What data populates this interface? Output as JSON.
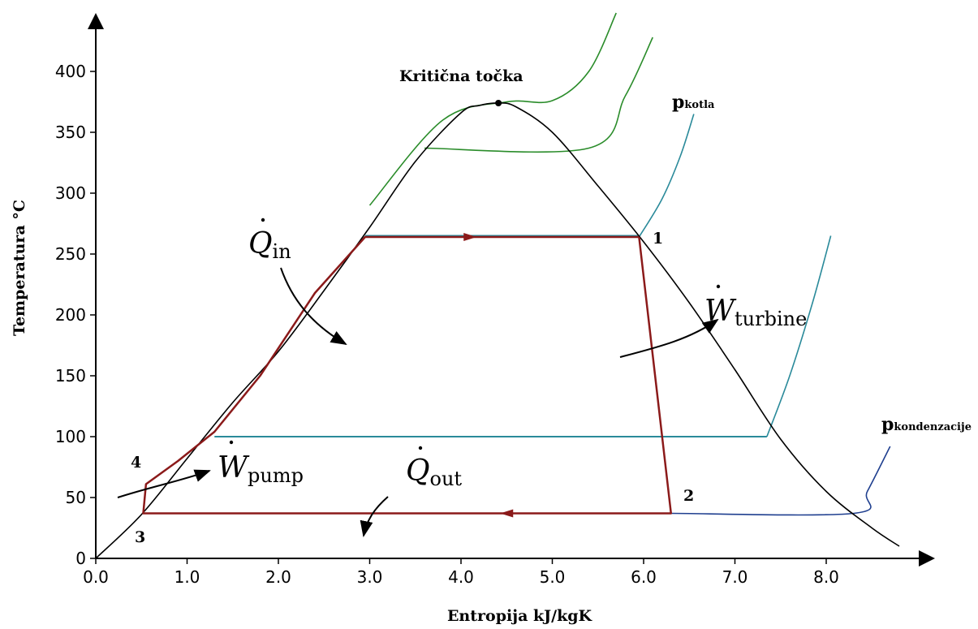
{
  "chart_data": {
    "type": "line",
    "title": "",
    "xlabel": "Entropija kJ/kgK",
    "ylabel": "Temperatura °C",
    "xlim": [
      0.0,
      8.9
    ],
    "ylim": [
      0,
      450
    ],
    "x_ticks": [
      "0.0",
      "1.0",
      "2.0",
      "3.0",
      "4.0",
      "5.0",
      "6.0",
      "7.0",
      "8.0"
    ],
    "y_ticks": [
      "0",
      "50",
      "100",
      "150",
      "200",
      "250",
      "300",
      "350",
      "400"
    ],
    "grid": false,
    "colors": {
      "saturation_dome": "#000000",
      "cycle": "#8b1a1a",
      "boiler_isobar": "#2a8a9a",
      "high_isobars": "#2a8c2a",
      "condenser_isobar": "#1f3f8f",
      "critical_point": "#000000"
    },
    "saturation_dome": {
      "x": [
        0.0,
        0.5,
        1.0,
        1.5,
        2.0,
        2.5,
        3.0,
        3.5,
        4.0,
        4.2,
        4.41,
        4.6,
        5.0,
        5.5,
        6.0,
        6.5,
        7.0,
        7.5,
        8.0,
        8.5,
        8.8
      ],
      "y": [
        0,
        36,
        82,
        128,
        170,
        220,
        272,
        326,
        366,
        372,
        374,
        371,
        350,
        306,
        260,
        210,
        155,
        98,
        55,
        25,
        10
      ]
    },
    "critical_point": {
      "label": "Kritična točka",
      "x": 4.41,
      "y": 374
    },
    "cycle": {
      "points": [
        {
          "label": "1",
          "x": 5.95,
          "y": 264
        },
        {
          "label": "2",
          "x": 6.3,
          "y": 37
        },
        {
          "label": "3",
          "x": 0.52,
          "y": 37
        },
        {
          "label": "4",
          "x": 0.55,
          "y": 61
        }
      ],
      "path_x": [
        5.95,
        6.3,
        0.52,
        0.55,
        0.9,
        1.3,
        1.8,
        2.4,
        2.95,
        5.95
      ],
      "path_y": [
        264,
        37,
        37,
        61,
        80,
        104,
        150,
        218,
        264,
        264
      ]
    },
    "isobars": [
      {
        "name": "pkotla",
        "x": [
          5.95,
          6.2,
          6.4,
          6.55
        ],
        "y": [
          264,
          295,
          330,
          365
        ]
      },
      {
        "name": "",
        "x": [
          7.35,
          7.6,
          7.85,
          8.05
        ],
        "y": [
          100,
          150,
          210,
          265
        ]
      },
      {
        "name": "pkondenzacije",
        "x": [
          6.3,
          8.3,
          8.45,
          8.7
        ],
        "y": [
          37,
          37,
          55,
          92
        ]
      },
      {
        "name": "",
        "x": [
          3.6,
          5.4,
          5.8,
          6.1
        ],
        "y": [
          337,
          337,
          380,
          428
        ]
      },
      {
        "name": "",
        "x": [
          3.0,
          3.8,
          4.5,
          5.0,
          5.4,
          5.7
        ],
        "y": [
          290,
          360,
          375,
          376,
          400,
          448
        ]
      }
    ],
    "annotations": [
      {
        "symbol": "Q",
        "subscript": "in"
      },
      {
        "symbol": "W",
        "subscript": "turbine"
      },
      {
        "symbol": "W",
        "subscript": "pump"
      },
      {
        "symbol": "Q",
        "subscript": "out"
      }
    ],
    "state_labels": [
      "1",
      "2",
      "3",
      "4"
    ],
    "pressure_labels": {
      "boiler": {
        "main": "p",
        "sub": "kotla"
      },
      "condenser": {
        "main": "p",
        "sub": "kondenzacije"
      }
    }
  }
}
